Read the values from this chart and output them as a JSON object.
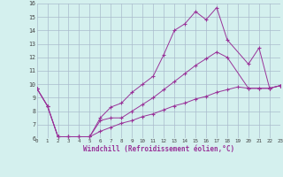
{
  "xlabel": "Windchill (Refroidissement éolien,°C)",
  "line_color": "#993399",
  "bg_color": "#d4f0ee",
  "grid_color": "#aabbcc",
  "x_min": 0,
  "x_max": 23,
  "y_min": 6,
  "y_max": 16,
  "line1_x": [
    0,
    1,
    2,
    3,
    4,
    5,
    6,
    7,
    8,
    9,
    10,
    11,
    12,
    13,
    14,
    15,
    16,
    17,
    18,
    20,
    21,
    22,
    23
  ],
  "line1_y": [
    9.7,
    8.4,
    6.1,
    6.1,
    6.1,
    6.1,
    7.5,
    8.3,
    8.6,
    9.4,
    10.0,
    10.6,
    12.2,
    14.0,
    14.5,
    15.4,
    14.8,
    15.7,
    13.3,
    11.5,
    12.7,
    9.7,
    9.9
  ],
  "line2_x": [
    0,
    1,
    2,
    3,
    4,
    5,
    6,
    7,
    8,
    9,
    10,
    11,
    12,
    13,
    14,
    15,
    16,
    17,
    18,
    20,
    21,
    22,
    23
  ],
  "line2_y": [
    9.7,
    8.4,
    6.1,
    6.1,
    6.1,
    6.1,
    7.3,
    7.5,
    7.5,
    8.0,
    8.5,
    9.0,
    9.6,
    10.2,
    10.8,
    11.4,
    11.9,
    12.4,
    12.0,
    9.7,
    9.7,
    9.7,
    9.9
  ],
  "line3_x": [
    0,
    1,
    2,
    3,
    4,
    5,
    6,
    7,
    8,
    9,
    10,
    11,
    12,
    13,
    14,
    15,
    16,
    17,
    18,
    19,
    20,
    21,
    22,
    23
  ],
  "line3_y": [
    9.7,
    8.4,
    6.1,
    6.1,
    6.1,
    6.1,
    6.5,
    6.8,
    7.1,
    7.3,
    7.6,
    7.8,
    8.1,
    8.4,
    8.6,
    8.9,
    9.1,
    9.4,
    9.6,
    9.8,
    9.7,
    9.7,
    9.7,
    9.9
  ],
  "yticks": [
    6,
    7,
    8,
    9,
    10,
    11,
    12,
    13,
    14,
    15,
    16
  ],
  "xticks": [
    0,
    1,
    2,
    3,
    4,
    5,
    6,
    7,
    8,
    9,
    10,
    11,
    12,
    13,
    14,
    15,
    16,
    17,
    18,
    19,
    20,
    21,
    22,
    23
  ]
}
